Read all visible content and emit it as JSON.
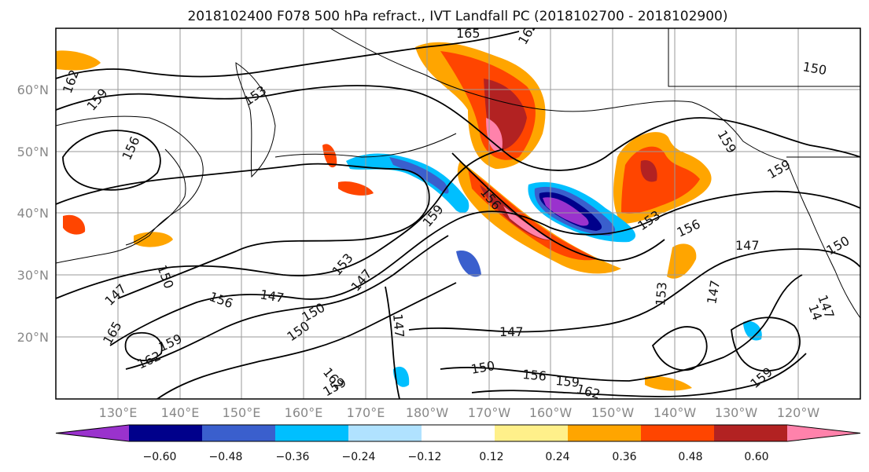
{
  "title": "2018102400 F078 500 hPa refract., IVT Landfall PC (2018102700 - 2018102900)",
  "lat_labels": [
    "60°N",
    "50°N",
    "40°N",
    "30°N",
    "20°N"
  ],
  "lon_labels": [
    "130°E",
    "140°E",
    "150°E",
    "160°E",
    "170°E",
    "180°W",
    "170°W",
    "160°W",
    "150°W",
    "140°W",
    "130°W",
    "120°W"
  ],
  "colorbar": {
    "colors": [
      "#9a32cd",
      "#00008b",
      "#3a5fcd",
      "#00bfff",
      "#b0e2ff",
      "#ffffff",
      "#fff08a",
      "#ffa500",
      "#ff4500",
      "#b22222",
      "#ff82ab"
    ],
    "tick_labels": [
      "−0.60",
      "−0.48",
      "−0.36",
      "−0.24",
      "−0.12",
      "0.12",
      "0.24",
      "0.36",
      "0.48",
      "0.60"
    ]
  },
  "contour_labels": [
    "165",
    "162",
    "159",
    "156",
    "153",
    "150",
    "147",
    "165",
    "162",
    "159",
    "156",
    "153",
    "150",
    "147",
    "153",
    "156",
    "147",
    "150",
    "147",
    "153",
    "147",
    "150",
    "156",
    "159",
    "162",
    "159",
    "162",
    "147",
    "159",
    "147",
    "156",
    "159",
    "150",
    "159",
    "162",
    "159",
    "147",
    "150",
    "14"
  ]
}
